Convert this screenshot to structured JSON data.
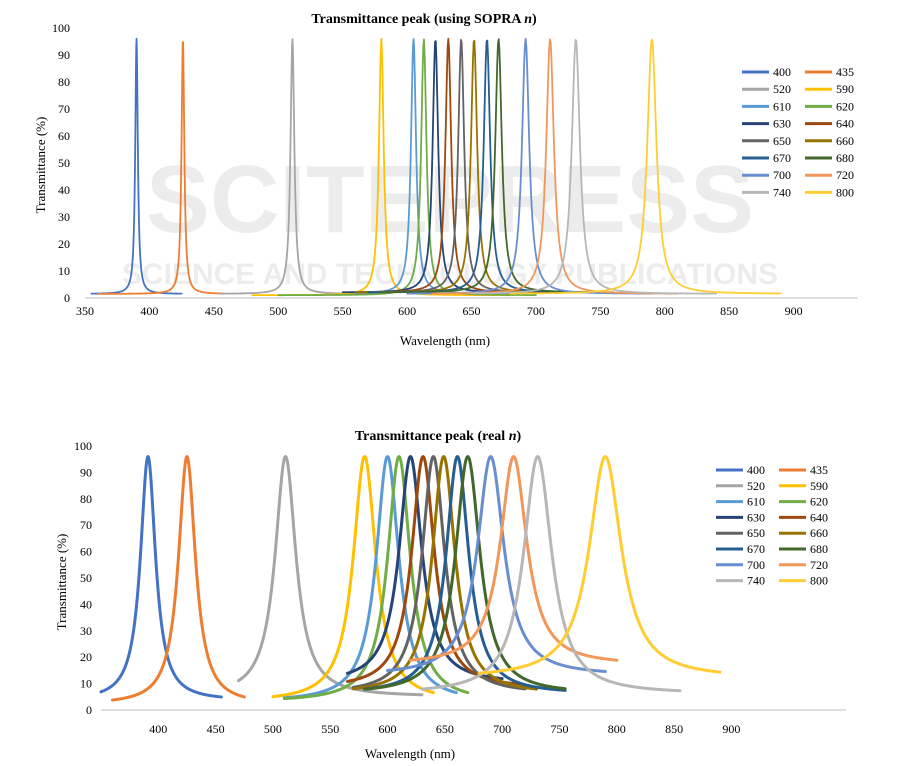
{
  "watermark": {
    "text": "SCITEPRESS",
    "subtitle": "SCIENCE AND TECHNOLOGY PUBLICATIONS"
  },
  "chart_data": [
    {
      "type": "line",
      "title": "Transmittance peak (using SOPRA ",
      "title_var": "n",
      "title_end": ")",
      "xlabel": "Wavelength  (nm)",
      "ylabel": "Transmittance (%)",
      "xlim": [
        350,
        950
      ],
      "ylim": [
        0,
        100
      ],
      "xticks": [
        350,
        400,
        450,
        500,
        550,
        600,
        650,
        700,
        750,
        800,
        850,
        900
      ],
      "yticks": [
        0,
        10,
        20,
        30,
        40,
        50,
        60,
        70,
        80,
        90,
        100
      ],
      "grid": false,
      "legend_position": "right",
      "series": [
        {
          "name": "400",
          "color": "#4472C4",
          "peak_x": 390,
          "peak_y": 96,
          "width": 1.2,
          "baseline": 1.5,
          "xmin": 355,
          "xmax": 425
        },
        {
          "name": "435",
          "color": "#ED7D31",
          "peak_x": 426,
          "peak_y": 96,
          "width": 1.3,
          "baseline": 1.5,
          "xmin": 360,
          "xmax": 458
        },
        {
          "name": "520",
          "color": "#A5A5A5",
          "peak_x": 511,
          "peak_y": 96,
          "width": 1.8,
          "baseline": 1.5,
          "xmin": 455,
          "xmax": 570
        },
        {
          "name": "590",
          "color": "#FFC000",
          "peak_x": 580,
          "peak_y": 96,
          "width": 2.2,
          "baseline": 1,
          "xmin": 480,
          "xmax": 680
        },
        {
          "name": "610",
          "color": "#5B9BD5",
          "peak_x": 605,
          "peak_y": 96,
          "width": 2.4,
          "baseline": 1.5,
          "xmin": 560,
          "xmax": 700
        },
        {
          "name": "620",
          "color": "#70AD47",
          "peak_x": 613,
          "peak_y": 96,
          "width": 2.5,
          "baseline": 1,
          "xmin": 500,
          "xmax": 700
        },
        {
          "name": "630",
          "color": "#264478",
          "peak_x": 622,
          "peak_y": 96,
          "width": 2.6,
          "baseline": 2,
          "xmin": 550,
          "xmax": 720
        },
        {
          "name": "640",
          "color": "#9E480E",
          "peak_x": 632,
          "peak_y": 96,
          "width": 2.7,
          "baseline": 2,
          "xmin": 560,
          "xmax": 720
        },
        {
          "name": "650",
          "color": "#636363",
          "peak_x": 642,
          "peak_y": 96,
          "width": 2.8,
          "baseline": 2,
          "xmin": 560,
          "xmax": 730
        },
        {
          "name": "660",
          "color": "#997300",
          "peak_x": 652,
          "peak_y": 96,
          "width": 2.9,
          "baseline": 2,
          "xmin": 560,
          "xmax": 740
        },
        {
          "name": "670",
          "color": "#255E91",
          "peak_x": 662,
          "peak_y": 96,
          "width": 3.0,
          "baseline": 2,
          "xmin": 570,
          "xmax": 750
        },
        {
          "name": "680",
          "color": "#43682B",
          "peak_x": 671,
          "peak_y": 96,
          "width": 3.1,
          "baseline": 2,
          "xmin": 580,
          "xmax": 760
        },
        {
          "name": "700",
          "color": "#698ED0",
          "peak_x": 692,
          "peak_y": 96,
          "width": 3.4,
          "baseline": 1.5,
          "xmin": 600,
          "xmax": 790
        },
        {
          "name": "720",
          "color": "#F1975A",
          "peak_x": 711,
          "peak_y": 96,
          "width": 3.6,
          "baseline": 1.5,
          "xmin": 620,
          "xmax": 810
        },
        {
          "name": "740",
          "color": "#B7B7B7",
          "peak_x": 731,
          "peak_y": 96,
          "width": 3.8,
          "baseline": 1.5,
          "xmin": 650,
          "xmax": 840
        },
        {
          "name": "800",
          "color": "#FFCD33",
          "peak_x": 790,
          "peak_y": 96,
          "width": 4.3,
          "baseline": 1.5,
          "xmin": 680,
          "xmax": 890
        }
      ]
    },
    {
      "type": "line",
      "title": "Transmittance peak (real ",
      "title_var": "n",
      "title_end": ")",
      "xlabel": "Wavelength  (nm)",
      "ylabel": "Transmittance (%)",
      "xlim": [
        350,
        1000
      ],
      "ylim": [
        0,
        100
      ],
      "xticks": [
        400,
        450,
        500,
        550,
        600,
        650,
        700,
        750,
        800,
        850,
        900
      ],
      "yticks": [
        0,
        10,
        20,
        30,
        40,
        50,
        60,
        70,
        80,
        90,
        100
      ],
      "grid": false,
      "legend_position": "right",
      "series": [
        {
          "name": "400",
          "color": "#4472C4",
          "peak_x": 391,
          "peak_y": 96,
          "width": 8,
          "baseline": 3.5,
          "xmin": 350,
          "xmax": 455
        },
        {
          "name": "435",
          "color": "#ED7D31",
          "peak_x": 425,
          "peak_y": 96,
          "width": 9,
          "baseline": 2,
          "xmin": 360,
          "xmax": 475
        },
        {
          "name": "520",
          "color": "#A5A5A5",
          "peak_x": 511,
          "peak_y": 96,
          "width": 11,
          "baseline": 5,
          "xmin": 470,
          "xmax": 630
        },
        {
          "name": "590",
          "color": "#FFC000",
          "peak_x": 580,
          "peak_y": 96,
          "width": 12,
          "baseline": 3,
          "xmin": 500,
          "xmax": 640
        },
        {
          "name": "610",
          "color": "#5B9BD5",
          "peak_x": 600,
          "peak_y": 96,
          "width": 12,
          "baseline": 3,
          "xmin": 510,
          "xmax": 660
        },
        {
          "name": "620",
          "color": "#70AD47",
          "peak_x": 610,
          "peak_y": 96,
          "width": 12,
          "baseline": 3,
          "xmin": 510,
          "xmax": 670
        },
        {
          "name": "630",
          "color": "#264478",
          "peak_x": 620,
          "peak_y": 96,
          "width": 12,
          "baseline": 10,
          "xmin": 565,
          "xmax": 700
        },
        {
          "name": "640",
          "color": "#9E480E",
          "peak_x": 631,
          "peak_y": 96,
          "width": 12,
          "baseline": 8,
          "xmin": 565,
          "xmax": 720
        },
        {
          "name": "650",
          "color": "#636363",
          "peak_x": 640,
          "peak_y": 96,
          "width": 12,
          "baseline": 6,
          "xmin": 570,
          "xmax": 720
        },
        {
          "name": "660",
          "color": "#997300",
          "peak_x": 649,
          "peak_y": 96,
          "width": 12,
          "baseline": 6,
          "xmin": 570,
          "xmax": 730
        },
        {
          "name": "670",
          "color": "#255E91",
          "peak_x": 661,
          "peak_y": 96,
          "width": 12,
          "baseline": 6,
          "xmin": 580,
          "xmax": 755
        },
        {
          "name": "680",
          "color": "#43682B",
          "peak_x": 670,
          "peak_y": 96,
          "width": 13,
          "baseline": 6,
          "xmin": 580,
          "xmax": 755
        },
        {
          "name": "700",
          "color": "#698ED0",
          "peak_x": 690,
          "peak_y": 96,
          "width": 14,
          "baseline": 13,
          "xmin": 600,
          "xmax": 790
        },
        {
          "name": "720",
          "color": "#F1975A",
          "peak_x": 710,
          "peak_y": 96,
          "width": 14,
          "baseline": 17,
          "xmin": 620,
          "xmax": 800
        },
        {
          "name": "740",
          "color": "#B7B7B7",
          "peak_x": 731,
          "peak_y": 96,
          "width": 15,
          "baseline": 6,
          "xmin": 630,
          "xmax": 855
        },
        {
          "name": "800",
          "color": "#FFCD33",
          "peak_x": 790,
          "peak_y": 96,
          "width": 17,
          "baseline": 12,
          "xmin": 680,
          "xmax": 890
        }
      ]
    }
  ]
}
